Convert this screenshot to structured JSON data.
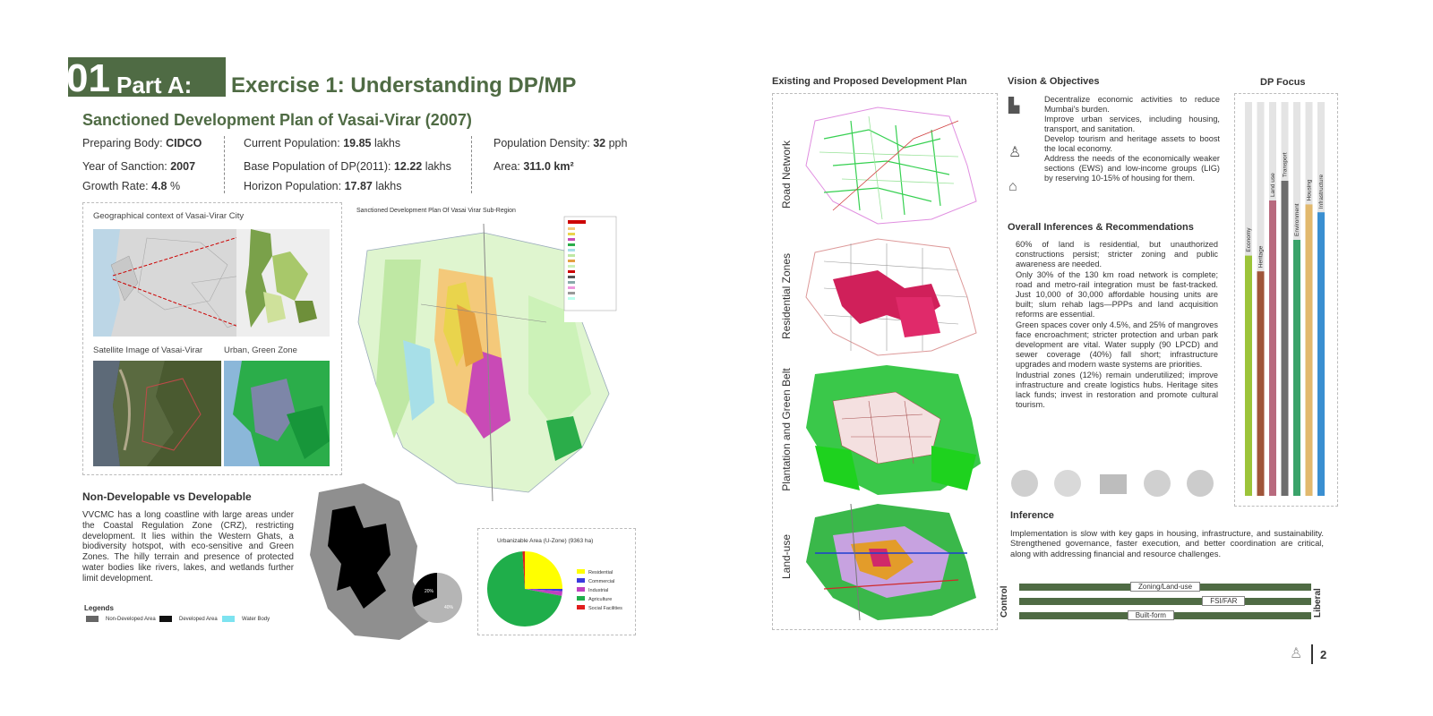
{
  "header": {
    "number": "01",
    "part": "Part A:",
    "exercise": "Exercise 1: Understanding DP/MP",
    "subtitle": "Sanctioned Development Plan of Vasai-Virar (2007)"
  },
  "stats": {
    "preparing_body_label": "Preparing Body: ",
    "preparing_body": "CIDCO",
    "year_label": "Year of Sanction: ",
    "year": "2007",
    "growth_label": "Growth Rate: ",
    "growth": "4.8",
    "growth_unit": " %",
    "current_pop_label": "Current Population: ",
    "current_pop": "19.85",
    "current_pop_unit": " lakhs",
    "base_pop_label": "Base Population of DP(2011): ",
    "base_pop": "12.22",
    "base_pop_unit": " lakhs",
    "horizon_label": "Horizon Population: ",
    "horizon": "17.87",
    "horizon_unit": " lakhs",
    "density_label": "Population Density: ",
    "density": "32",
    "density_unit": " pph",
    "area_label": "Area: ",
    "area": "311.0 km²"
  },
  "left_maps": {
    "geo_title": "Geographical context of Vasai-Virar City",
    "sat_title": "Satellite Image of Vasai-Virar",
    "urban_title": "Urban, Green Zone",
    "sanctioned_title": "Sanctioned Development Plan Of Vasai Virar Sub-Region"
  },
  "nondev": {
    "title": "Non-Developable vs Developable",
    "text": "VVCMC has a long coastline with large areas under the Coastal Regulation Zone (CRZ), restricting development. It lies within the Western Ghats, a biodiversity hotspot, with eco-sensitive and Green Zones. The hilly terrain and presence of protected water bodies like rivers, lakes, and wetlands further limit development.",
    "legends_title": "Legends",
    "legends": [
      "Non-Developed Area",
      "Developed Area",
      "Water Body"
    ],
    "pie_labels": [
      "20%",
      "40%"
    ]
  },
  "urbanizable": {
    "title": "Urbanizable Area (U-Zone) (9363 ha)",
    "legend": [
      "Residential",
      "Commercial",
      "Industrial",
      "Agriculture",
      "Social Facilities"
    ],
    "colors": [
      "#ffff00",
      "#3a3adf",
      "#c040c0",
      "#1fae4a",
      "#e11d1d"
    ]
  },
  "chart_data": {
    "type": "pie",
    "title": "Urbanizable Area (U-Zone) (9363 ha)",
    "categories": [
      "Residential",
      "Commercial",
      "Industrial",
      "Agriculture",
      "Social Facilities"
    ],
    "values": [
      25,
      1,
      2,
      71,
      1
    ]
  },
  "middle": {
    "title": "Existing and Proposed Development Plan",
    "labels": [
      "Road Network",
      "Residential Zones",
      "Plantation and Green Belt",
      "Land-use"
    ]
  },
  "vision": {
    "title": "Vision & Objectives",
    "items": [
      "Decentralize economic activities to reduce Mumbai's burden.",
      "Improve urban services, including housing, transport, and sanitation.",
      "Develop tourism and heritage assets to boost the local economy.",
      "Address the needs of the economically weaker sections (EWS) and low-income groups (LIG) by reserving 10-15% of housing for them."
    ]
  },
  "inferences": {
    "title": "Overall Inferences & Recommendations",
    "items": [
      "60% of land is residential, but unauthorized constructions persist; stricter zoning and public awareness are needed.",
      "Only 30% of the 130 km road network is complete; road and metro-rail integration must be fast-tracked. Just 10,000 of 30,000 affordable housing units are built; slum rehab lags—PPPs and land acquisition reforms are essential.",
      "Green spaces cover only 4.5%, and 25% of mangroves face encroachment; stricter protection and urban park development are vital. Water supply (90 LPCD) and sewer coverage (40%) fall short; infrastructure upgrades and modern waste systems are priorities.",
      "Industrial zones (12%) remain underutilized; improve infrastructure and create logistics hubs. Heritage sites lack funds; invest in restoration and promote cultural tourism."
    ]
  },
  "dp_focus": {
    "title": "DP Focus",
    "bars": [
      {
        "name": "Economy",
        "value": 0.61,
        "color": "#9cc43a"
      },
      {
        "name": "Heritage",
        "value": 0.57,
        "color": "#a0553a"
      },
      {
        "name": "Land use",
        "value": 0.75,
        "color": "#b86a7e"
      },
      {
        "name": "Transport",
        "value": 0.8,
        "color": "#6d6d6d"
      },
      {
        "name": "Environment",
        "value": 0.65,
        "color": "#3aa36a"
      },
      {
        "name": "Housing",
        "value": 0.74,
        "color": "#e2b96e"
      },
      {
        "name": "Infrastructure",
        "value": 0.72,
        "color": "#3a8fd1"
      }
    ]
  },
  "inference": {
    "title": "Inference",
    "text": "Implementation is slow with key gaps in housing, infrastructure, and sustainability. Strengthened governance, faster execution, and better coordination are critical, along with addressing financial and resource challenges."
  },
  "gauge": {
    "left": "Control",
    "right": "Liberal",
    "rows": [
      {
        "label": "Zoning/Land-use",
        "position": 0.5
      },
      {
        "label": "FSI/FAR",
        "position": 0.7
      },
      {
        "label": "Built-form",
        "position": 0.45
      }
    ]
  },
  "page": {
    "number": "2"
  }
}
